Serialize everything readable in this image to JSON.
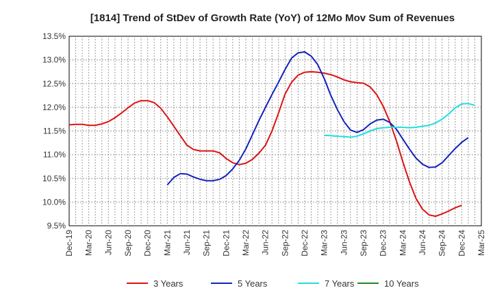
{
  "chart_data": {
    "type": "line",
    "title": "[1814]  Trend of StDev of Growth Rate (YoY) of 12Mo Mov Sum of Revenues",
    "xlabel": "",
    "ylabel": "",
    "ylim": [
      9.5,
      13.5
    ],
    "yticks": [
      "9.5%",
      "10.0%",
      "10.5%",
      "11.0%",
      "11.5%",
      "12.0%",
      "12.5%",
      "13.0%",
      "13.5%"
    ],
    "x_tick_labels": [
      "Dec-19",
      "Mar-20",
      "Jun-20",
      "Sep-20",
      "Dec-20",
      "Mar-21",
      "Jun-21",
      "Sep-21",
      "Dec-21",
      "Mar-22",
      "Jun-22",
      "Sep-22",
      "Dec-22",
      "Mar-23",
      "Jun-23",
      "Sep-23",
      "Dec-23",
      "Mar-24",
      "Jun-24",
      "Sep-24",
      "Dec-24",
      "Mar-25"
    ],
    "grid": true,
    "legend_position": "bottom",
    "series": [
      {
        "name": "3 Years",
        "color": "#dd1111",
        "start_index": 0,
        "values": [
          11.63,
          11.64,
          11.64,
          11.62,
          11.62,
          11.65,
          11.7,
          11.78,
          11.88,
          11.99,
          12.09,
          12.14,
          12.14,
          12.1,
          11.98,
          11.8,
          11.6,
          11.4,
          11.2,
          11.11,
          11.08,
          11.08,
          11.08,
          11.04,
          10.92,
          10.83,
          10.79,
          10.82,
          10.9,
          11.03,
          11.2,
          11.5,
          11.88,
          12.28,
          12.53,
          12.68,
          12.74,
          12.75,
          12.74,
          12.72,
          12.69,
          12.64,
          12.58,
          12.54,
          12.52,
          12.51,
          12.43,
          12.27,
          12.02,
          11.7,
          11.3,
          10.85,
          10.43,
          10.08,
          9.85,
          9.73,
          9.7,
          9.75,
          9.81,
          9.88,
          9.93
        ]
      },
      {
        "name": "5 Years",
        "color": "#1122bb",
        "start_index": 15,
        "values": [
          10.36,
          10.52,
          10.6,
          10.59,
          10.53,
          10.48,
          10.45,
          10.45,
          10.48,
          10.56,
          10.7,
          10.88,
          11.12,
          11.42,
          11.72,
          12.0,
          12.27,
          12.53,
          12.8,
          13.04,
          13.15,
          13.17,
          13.08,
          12.9,
          12.6,
          12.25,
          11.95,
          11.7,
          11.52,
          11.47,
          11.53,
          11.65,
          11.73,
          11.75,
          11.68,
          11.54,
          11.33,
          11.12,
          10.93,
          10.8,
          10.73,
          10.74,
          10.83,
          10.98,
          11.13,
          11.26,
          11.36
        ]
      },
      {
        "name": "7 Years",
        "color": "#22dddd",
        "start_index": 39,
        "values": [
          11.41,
          11.4,
          11.39,
          11.38,
          11.37,
          11.39,
          11.44,
          11.5,
          11.55,
          11.57,
          11.58,
          11.58,
          11.58,
          11.57,
          11.58,
          11.6,
          11.62,
          11.67,
          11.75,
          11.86,
          11.99,
          12.07,
          12.08,
          12.04
        ]
      },
      {
        "name": "10 Years",
        "color": "#228822",
        "start_index": 0,
        "values": []
      }
    ]
  }
}
